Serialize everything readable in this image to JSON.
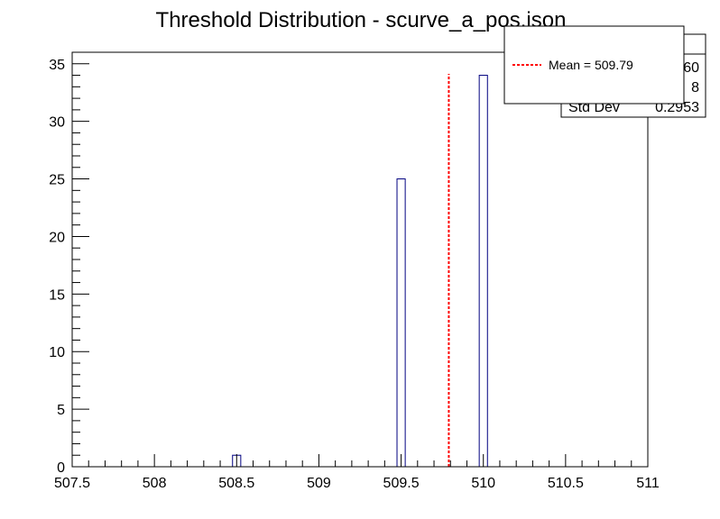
{
  "chart_data": {
    "type": "bar",
    "title": "Threshold Distribution - scurve_a_pos.json",
    "xlabel": "",
    "ylabel": "",
    "xlim": [
      507.5,
      511
    ],
    "ylim": [
      0,
      36
    ],
    "bin_width": 0.05,
    "x_ticks": [
      507.5,
      508,
      508.5,
      509,
      509.5,
      510,
      510.5,
      511
    ],
    "x_tick_labels": [
      "507.5",
      "508",
      "508.5",
      "509",
      "509.5",
      "510",
      "510.5",
      "511"
    ],
    "y_ticks": [
      0,
      5,
      10,
      15,
      20,
      25,
      30,
      35
    ],
    "y_tick_labels": [
      "0",
      "5",
      "10",
      "15",
      "20",
      "25",
      "30",
      "35"
    ],
    "bins": [
      {
        "x": 508.5,
        "count": 1
      },
      {
        "x": 509.5,
        "count": 25
      },
      {
        "x": 510.0,
        "count": 34
      }
    ],
    "mean_line": {
      "x": 509.79,
      "label": "Mean = 509.79",
      "color": "#ff0000"
    },
    "stats_box": {
      "rows": [
        {
          "label": "",
          "value": "60"
        },
        {
          "label": "",
          "value": "8"
        },
        {
          "label": "Std Dev",
          "value": "0.2953"
        }
      ]
    },
    "legend": {
      "placement": "top-right",
      "entries": [
        {
          "label": "Mean = 509.79",
          "color": "#ff0000",
          "style": "dashed"
        }
      ]
    },
    "colors": {
      "bar_edge": "#000080",
      "frame": "#000000",
      "mean": "#ff0000"
    }
  }
}
